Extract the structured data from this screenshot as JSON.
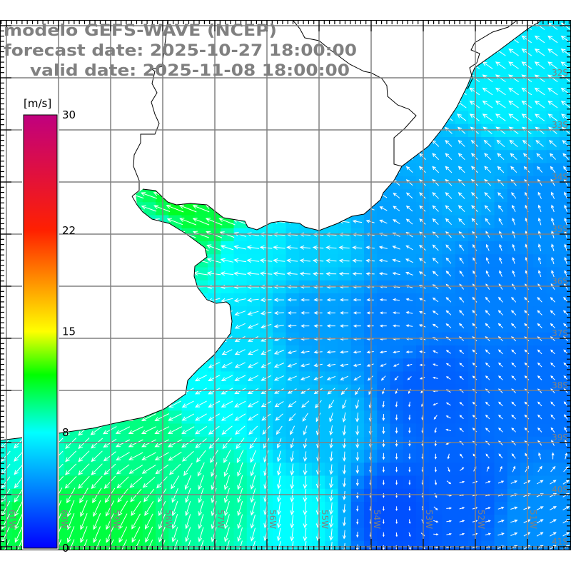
{
  "header": {
    "model_line": "modelo GEFS-WAVE (NCEP)",
    "forecast_line": "forecast date: 2025-10-27 18:00:00",
    "valid_line": "valid date: 2025-11-08 18:00:00"
  },
  "colorbar": {
    "unit": "[m/s]",
    "min": 0,
    "max": 30,
    "ticks": [
      {
        "value": 30,
        "label": "30"
      },
      {
        "value": 22,
        "label": "22"
      },
      {
        "value": 15,
        "label": "15"
      },
      {
        "value": 8,
        "label": "8"
      },
      {
        "value": 0,
        "label": "0"
      }
    ],
    "stops": [
      {
        "value": 0,
        "color": "#0000ff"
      },
      {
        "value": 8,
        "color": "#00ffff"
      },
      {
        "value": 12,
        "color": "#00ff00"
      },
      {
        "value": 15,
        "color": "#ffff00"
      },
      {
        "value": 18,
        "color": "#ffa000"
      },
      {
        "value": 22,
        "color": "#ff2000"
      },
      {
        "value": 30,
        "color": "#c0007f"
      }
    ]
  },
  "map": {
    "lon_labels": [
      {
        "lon": -61,
        "label": "61W"
      },
      {
        "lon": -60,
        "label": "60W"
      },
      {
        "lon": -59,
        "label": "59W"
      },
      {
        "lon": -58,
        "label": "58W"
      },
      {
        "lon": -57,
        "label": "57W"
      },
      {
        "lon": -56,
        "label": "56W"
      },
      {
        "lon": -55,
        "label": "55W"
      },
      {
        "lon": -54,
        "label": "54W"
      },
      {
        "lon": -53,
        "label": "53W"
      },
      {
        "lon": -52,
        "label": "52W"
      },
      {
        "lon": -51,
        "label": "51W"
      }
    ],
    "lat_labels": [
      {
        "lat": -32,
        "label": "32S"
      },
      {
        "lat": -33,
        "label": "33S"
      },
      {
        "lat": -34,
        "label": "34S"
      },
      {
        "lat": -35,
        "label": "35S"
      },
      {
        "lat": -36,
        "label": "36S"
      },
      {
        "lat": -37,
        "label": "37S"
      },
      {
        "lat": -38,
        "label": "38S"
      },
      {
        "lat": -39,
        "label": "39S"
      },
      {
        "lat": -40,
        "label": "40S"
      },
      {
        "lat": -41,
        "label": "41S"
      }
    ],
    "colors": {
      "grid": "#808080",
      "land": "#ffffff",
      "coast": "#000000",
      "arrow": "#ffffff"
    },
    "wind_speed_samples": [
      {
        "lon": -57.7,
        "lat": -34.5,
        "speed": 11.5
      },
      {
        "lon": -57.0,
        "lat": -34.6,
        "speed": 11
      },
      {
        "lon": -58.0,
        "lat": -34.9,
        "speed": 9
      },
      {
        "lon": -56.3,
        "lat": -35.2,
        "speed": 7.5
      },
      {
        "lon": -55.0,
        "lat": -35.2,
        "speed": 6.5
      },
      {
        "lon": -53.5,
        "lat": -34.9,
        "speed": 5
      },
      {
        "lon": -51.5,
        "lat": -32.3,
        "speed": 7.5
      },
      {
        "lon": -52.2,
        "lat": -33.9,
        "speed": 5.5
      },
      {
        "lon": -50.8,
        "lat": -34.6,
        "speed": 4.5
      },
      {
        "lon": -51.5,
        "lat": -36.0,
        "speed": 4
      },
      {
        "lon": -55.0,
        "lat": -36.7,
        "speed": 5
      },
      {
        "lon": -56.6,
        "lat": -37.1,
        "speed": 7
      },
      {
        "lon": -57.3,
        "lat": -37.9,
        "speed": 8
      },
      {
        "lon": -58.4,
        "lat": -38.7,
        "speed": 10
      },
      {
        "lon": -59.1,
        "lat": -38.8,
        "speed": 9.5
      },
      {
        "lon": -60.7,
        "lat": -39.3,
        "speed": 8.5
      },
      {
        "lon": -60.3,
        "lat": -40.4,
        "speed": 11
      },
      {
        "lon": -59.1,
        "lat": -40.6,
        "speed": 11
      },
      {
        "lon": -57.0,
        "lat": -40.1,
        "speed": 9.5
      },
      {
        "lon": -55.4,
        "lat": -40.4,
        "speed": 8
      },
      {
        "lon": -55.0,
        "lat": -38.7,
        "speed": 6
      },
      {
        "lon": -53.6,
        "lat": -40.4,
        "speed": 2.5
      },
      {
        "lon": -52.2,
        "lat": -40.1,
        "speed": 3
      },
      {
        "lon": -52.9,
        "lat": -38.0,
        "speed": 3
      },
      {
        "lon": -50.8,
        "lat": -38.0,
        "speed": 3.5
      },
      {
        "lon": -50.8,
        "lat": -40.4,
        "speed": 4.5
      },
      {
        "lon": -53.6,
        "lat": -36.7,
        "speed": 4
      }
    ],
    "wind_direction_samples": [
      {
        "lon": -51.5,
        "lat": -32.3,
        "u": -1,
        "v": 0.7
      },
      {
        "lon": -52.2,
        "lat": -33.9,
        "u": -0.8,
        "v": 0.8
      },
      {
        "lon": -50.8,
        "lat": -35.3,
        "u": -0.3,
        "v": 1
      },
      {
        "lon": -50.8,
        "lat": -36.7,
        "u": -0.7,
        "v": 0.7
      },
      {
        "lon": -55.6,
        "lat": -35.3,
        "u": -1,
        "v": 0.1
      },
      {
        "lon": -57.0,
        "lat": -34.5,
        "u": -1,
        "v": 0.4
      },
      {
        "lon": -55.0,
        "lat": -36.3,
        "u": -1,
        "v": 0
      },
      {
        "lon": -56.6,
        "lat": -37.4,
        "u": -1,
        "v": -0.5
      },
      {
        "lon": -58.4,
        "lat": -38.7,
        "u": -1,
        "v": -0.5
      },
      {
        "lon": -59.8,
        "lat": -39.4,
        "u": -0.7,
        "v": -0.7
      },
      {
        "lon": -59.8,
        "lat": -40.5,
        "u": -0.4,
        "v": -1
      },
      {
        "lon": -57.0,
        "lat": -40.4,
        "u": -0.3,
        "v": -1
      },
      {
        "lon": -55.0,
        "lat": -40.1,
        "u": -0.1,
        "v": -1
      },
      {
        "lon": -53.6,
        "lat": -39.4,
        "u": 0,
        "v": -1
      },
      {
        "lon": -51.5,
        "lat": -40.4,
        "u": 1,
        "v": 0.3
      },
      {
        "lon": -50.8,
        "lat": -40.9,
        "u": 1,
        "v": 0.6
      },
      {
        "lon": -51.5,
        "lat": -38.7,
        "u": -0.5,
        "v": 0.5
      }
    ]
  }
}
